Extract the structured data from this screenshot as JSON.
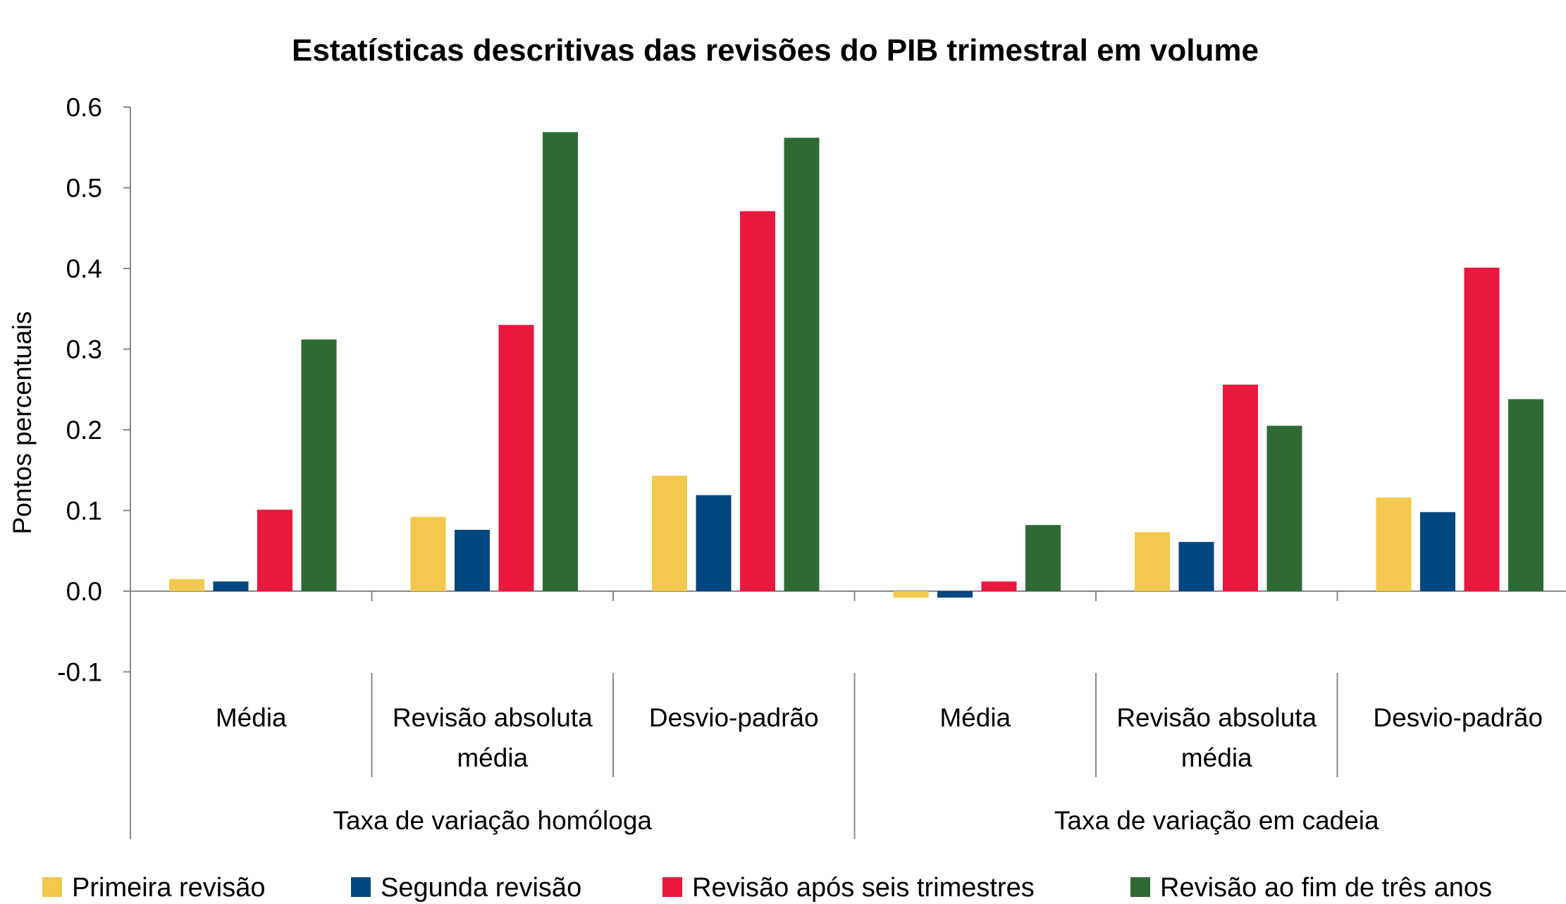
{
  "chart_data": {
    "type": "bar",
    "title": "Estatísticas descritivas das revisões do PIB trimestral em volume",
    "ylabel": "Pontos percentuais",
    "ylim": [
      -0.1,
      0.6
    ],
    "yticks": [
      "0.6",
      "0.5",
      "0.4",
      "0.3",
      "0.2",
      "0.1",
      "0.0",
      "-0.1"
    ],
    "yticks_values": [
      0.6,
      0.5,
      0.4,
      0.3,
      0.2,
      0.1,
      0.0,
      -0.1
    ],
    "groups": [
      {
        "label": "Taxa de variação homóloga",
        "categories": [
          {
            "lines": [
              "Média"
            ]
          },
          {
            "lines": [
              "Revisão absoluta",
              "média"
            ]
          },
          {
            "lines": [
              "Desvio-padrão"
            ]
          }
        ]
      },
      {
        "label": "Taxa de variação em cadeia",
        "categories": [
          {
            "lines": [
              "Média"
            ]
          },
          {
            "lines": [
              "Revisão absoluta",
              "média"
            ]
          },
          {
            "lines": [
              "Desvio-padrão"
            ]
          }
        ]
      }
    ],
    "series": [
      {
        "name": "Primeira revisão",
        "color": "#F2C94C",
        "values": [
          0.015,
          0.092,
          0.143,
          -0.008,
          0.073,
          0.116
        ]
      },
      {
        "name": "Segunda revisão",
        "color": "#00467F",
        "values": [
          0.012,
          0.076,
          0.119,
          -0.008,
          0.061,
          0.098
        ]
      },
      {
        "name": "Revisão após seis trimestres",
        "color": "#E8193C",
        "values": [
          0.101,
          0.33,
          0.471,
          0.012,
          0.256,
          0.401
        ]
      },
      {
        "name": "Revisão ao fim de três anos",
        "color": "#2E6B34",
        "values": [
          0.312,
          0.569,
          0.562,
          0.082,
          0.205,
          0.238
        ]
      }
    ],
    "legend_position": "bottom",
    "grid": false
  }
}
